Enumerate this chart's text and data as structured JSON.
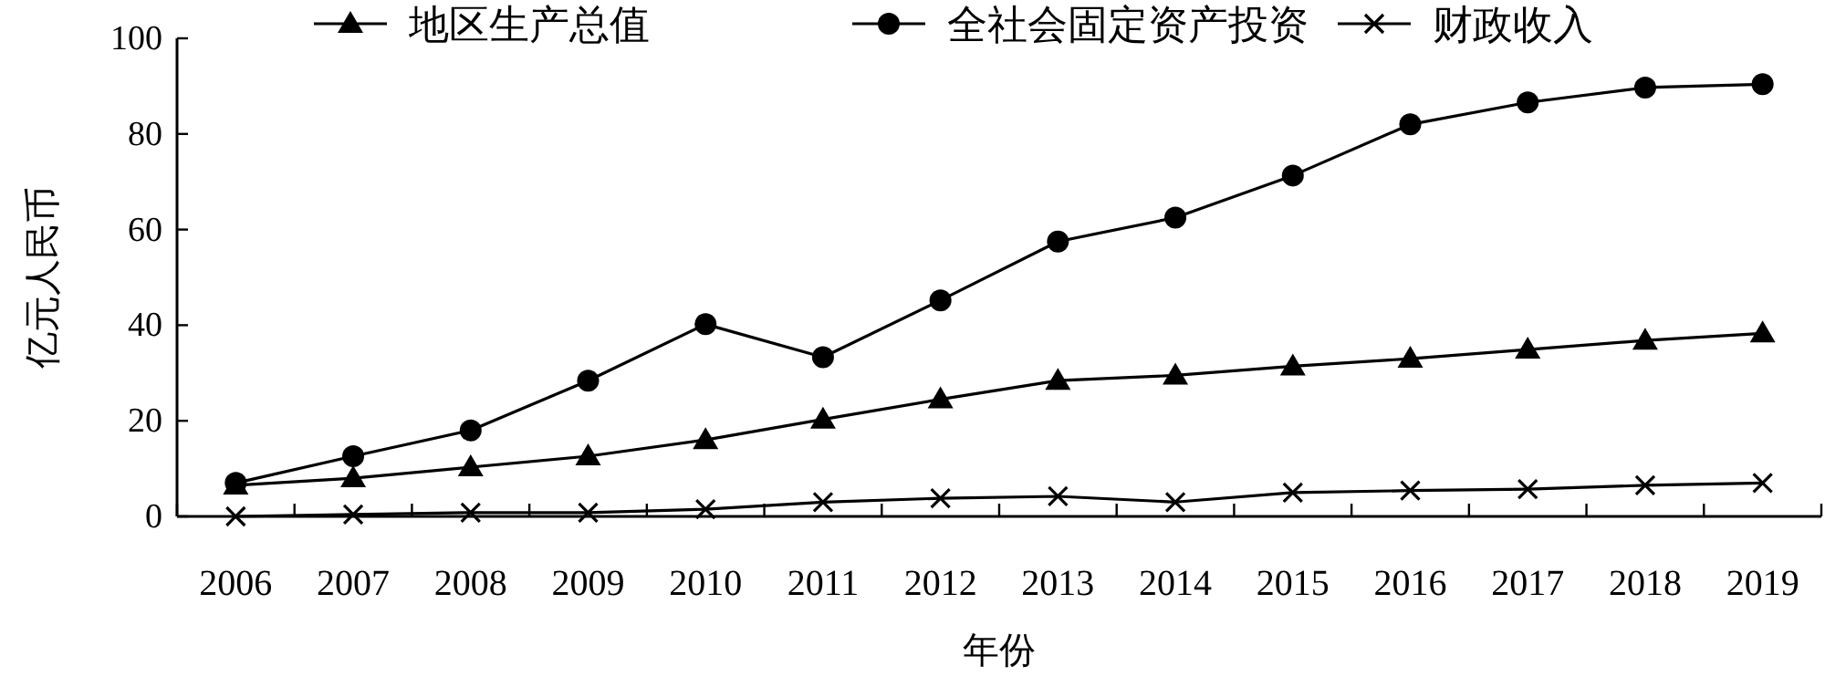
{
  "chart_data": {
    "type": "line",
    "xlabel": "年份",
    "ylabel": "亿元人民币",
    "categories": [
      "2006",
      "2007",
      "2008",
      "2009",
      "2010",
      "2011",
      "2012",
      "2013",
      "2014",
      "2015",
      "2016",
      "2017",
      "2018",
      "2019"
    ],
    "series": [
      {
        "name": "地区生产总值",
        "color": "#000000",
        "marker": "triangle",
        "values": [
          6.5,
          8,
          10.3,
          12.6,
          16,
          20.3,
          24.5,
          28.4,
          29.5,
          31.4,
          33,
          34.9,
          36.8,
          38.3
        ]
      },
      {
        "name": "全社会固定资产投资",
        "color": "#000000",
        "marker": "circle",
        "values": [
          7,
          12.6,
          18,
          28.4,
          40.2,
          33.3,
          45.2,
          57.5,
          62.5,
          71.3,
          82,
          86.6,
          89.7,
          90.4
        ]
      },
      {
        "name": "财政收入",
        "color": "#000000",
        "marker": "cross",
        "values": [
          0,
          0.4,
          0.8,
          0.8,
          1.5,
          3,
          3.8,
          4.2,
          3,
          5,
          5.4,
          5.7,
          6.5,
          7
        ]
      }
    ],
    "ylim": [
      0,
      100
    ],
    "yticks": [
      0,
      20,
      40,
      60,
      80,
      100
    ],
    "grid": false,
    "legend": "top",
    "line_style": "solid"
  }
}
